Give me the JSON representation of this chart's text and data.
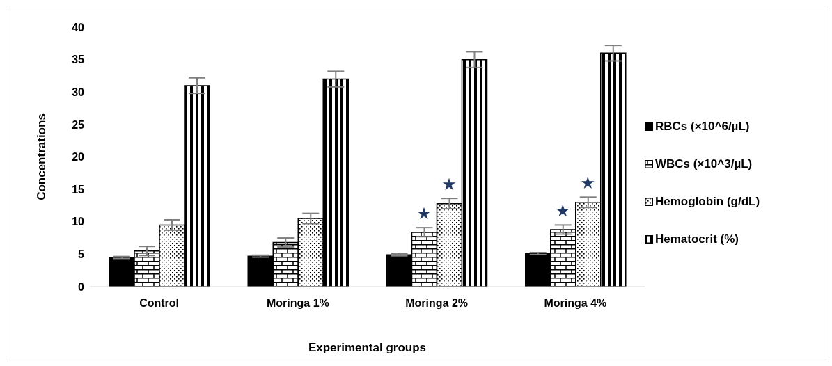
{
  "chart_data": {
    "type": "bar",
    "xlabel": "Experimental groups",
    "ylabel": "Concentrations",
    "categories": [
      "Control",
      "Moringa 1%",
      "Moringa 2%",
      "Moringa 4%"
    ],
    "series": [
      {
        "name": "RBCs (×10^6/µL)",
        "color": "#000000",
        "values": [
          4.5,
          4.7,
          4.9,
          5.1
        ],
        "errors": [
          0.15,
          0.15,
          0.15,
          0.15
        ]
      },
      {
        "name": "WBCs (×10^3/µL)",
        "color": "#000000",
        "values": [
          5.5,
          6.8,
          8.4,
          8.8
        ],
        "errors": [
          0.7,
          0.7,
          0.7,
          0.7
        ]
      },
      {
        "name": "Hemoglobin (g/dL)",
        "color": "#000000",
        "values": [
          9.5,
          10.5,
          12.8,
          13.0
        ],
        "errors": [
          0.8,
          0.8,
          0.8,
          0.8
        ]
      },
      {
        "name": "Hematocrit (%)",
        "color": "#000000",
        "values": [
          31,
          32,
          35,
          36
        ],
        "errors": [
          1.2,
          1.2,
          1.2,
          1.2
        ]
      }
    ],
    "ylim": [
      0,
      40
    ],
    "yticks": [
      0,
      5,
      10,
      15,
      20,
      25,
      30,
      35,
      40
    ],
    "legend": "right",
    "annotations": [
      {
        "text": "★",
        "x": "Moringa 2%",
        "y": 8.4
      },
      {
        "text": "★",
        "x": "Moringa 2%",
        "y": 12.8
      },
      {
        "text": "★",
        "x": "Moringa 4%",
        "y": 8.8
      },
      {
        "text": "★",
        "x": "Moringa 4%",
        "y": 13.0
      }
    ]
  }
}
